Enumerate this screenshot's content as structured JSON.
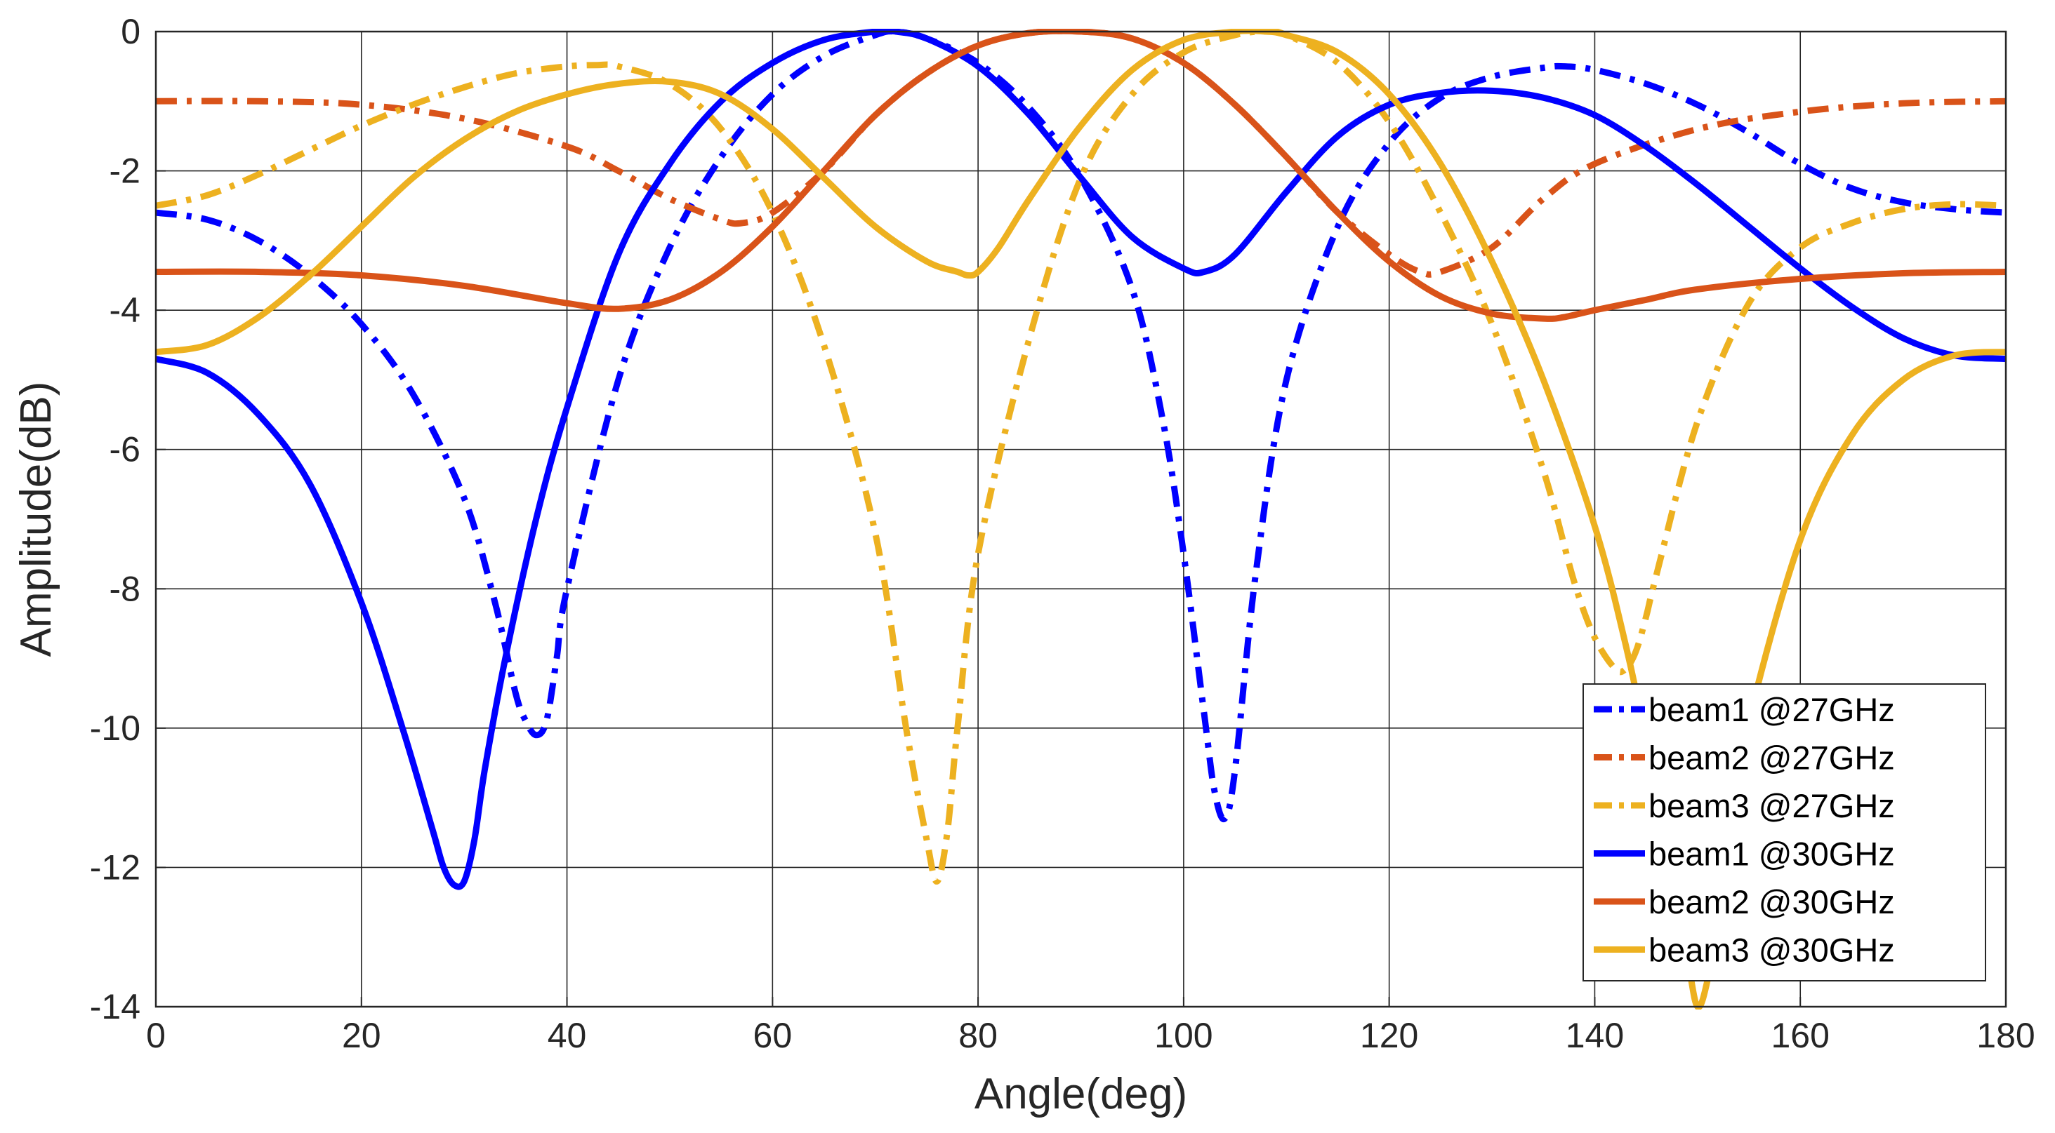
{
  "chart_data": {
    "type": "line",
    "title": "",
    "xlabel": "Angle(deg)",
    "ylabel": "Amplitude(dB)",
    "xlim": [
      0,
      180
    ],
    "ylim": [
      -14,
      0
    ],
    "xticks": [
      0,
      20,
      40,
      60,
      80,
      100,
      120,
      140,
      160,
      180
    ],
    "yticks": [
      0,
      -2,
      -4,
      -6,
      -8,
      -10,
      -12,
      -14
    ],
    "grid": true,
    "legend_position": "bottom-right",
    "series": [
      {
        "name": "beam1 @27GHz",
        "color": "#0000FF",
        "style": "dashdot",
        "x": [
          0,
          5,
          10,
          15,
          20,
          25,
          30,
          33,
          35,
          36,
          37,
          38,
          39,
          40,
          45,
          50,
          55,
          60,
          65,
          70,
          72,
          75,
          80,
          85,
          90,
          95,
          98,
          100,
          102,
          103,
          104,
          105,
          107,
          110,
          115,
          120,
          125,
          130,
          135,
          137,
          140,
          145,
          150,
          155,
          160,
          165,
          170,
          175,
          180
        ],
        "y": [
          -2.6,
          -2.7,
          -3.0,
          -3.5,
          -4.2,
          -5.2,
          -6.7,
          -8.2,
          -9.5,
          -9.9,
          -10.1,
          -9.9,
          -9.0,
          -8.0,
          -5.0,
          -3.1,
          -1.8,
          -0.9,
          -0.35,
          -0.05,
          0.0,
          -0.1,
          -0.45,
          -1.1,
          -2.1,
          -3.7,
          -5.6,
          -7.5,
          -9.8,
          -10.9,
          -11.3,
          -10.6,
          -7.8,
          -5.0,
          -2.8,
          -1.6,
          -0.95,
          -0.65,
          -0.52,
          -0.5,
          -0.55,
          -0.75,
          -1.05,
          -1.45,
          -1.9,
          -2.25,
          -2.45,
          -2.55,
          -2.6
        ]
      },
      {
        "name": "beam2 @27GHz",
        "color": "#D95319",
        "style": "dashdot",
        "x": [
          0,
          10,
          20,
          30,
          40,
          45,
          50,
          55,
          57,
          60,
          65,
          70,
          75,
          80,
          85,
          90,
          95,
          100,
          105,
          110,
          115,
          120,
          123,
          125,
          130,
          135,
          140,
          150,
          160,
          170,
          180
        ],
        "y": [
          -1.0,
          -1.0,
          -1.05,
          -1.25,
          -1.65,
          -2.0,
          -2.4,
          -2.7,
          -2.75,
          -2.6,
          -2.0,
          -1.2,
          -0.6,
          -0.2,
          -0.02,
          0.0,
          -0.1,
          -0.45,
          -1.05,
          -1.8,
          -2.6,
          -3.2,
          -3.45,
          -3.45,
          -3.1,
          -2.4,
          -1.9,
          -1.4,
          -1.15,
          -1.03,
          -1.0
        ]
      },
      {
        "name": "beam3 @27GHz",
        "color": "#EDB120",
        "style": "dashdot",
        "x": [
          0,
          5,
          10,
          15,
          20,
          25,
          30,
          35,
          40,
          43,
          45,
          50,
          55,
          60,
          65,
          70,
          73,
          75,
          76,
          77,
          78,
          80,
          85,
          90,
          95,
          100,
          105,
          108,
          110,
          115,
          120,
          125,
          130,
          135,
          138,
          140,
          142,
          143,
          144,
          145,
          146,
          150,
          155,
          160,
          165,
          170,
          175,
          180
        ],
        "y": [
          -2.5,
          -2.35,
          -2.05,
          -1.7,
          -1.35,
          -1.05,
          -0.8,
          -0.6,
          -0.5,
          -0.48,
          -0.5,
          -0.75,
          -1.4,
          -2.6,
          -4.5,
          -7.2,
          -10.0,
          -11.6,
          -12.2,
          -11.5,
          -10.0,
          -7.5,
          -4.4,
          -2.1,
          -0.9,
          -0.3,
          -0.05,
          0.0,
          -0.05,
          -0.45,
          -1.3,
          -2.6,
          -4.2,
          -6.3,
          -7.9,
          -8.7,
          -9.15,
          -9.15,
          -8.9,
          -8.4,
          -7.8,
          -5.6,
          -3.9,
          -3.1,
          -2.75,
          -2.55,
          -2.48,
          -2.5
        ]
      },
      {
        "name": "beam1 @30GHz",
        "color": "#0000FF",
        "style": "solid",
        "x": [
          0,
          5,
          10,
          15,
          20,
          24,
          27,
          28,
          29,
          30,
          31,
          32,
          34,
          37,
          40,
          45,
          50,
          55,
          60,
          65,
          70,
          72,
          75,
          80,
          85,
          90,
          95,
          100,
          102,
          105,
          110,
          115,
          120,
          125,
          130,
          135,
          140,
          145,
          150,
          155,
          160,
          165,
          170,
          175,
          180
        ],
        "y": [
          -4.7,
          -4.9,
          -5.5,
          -6.5,
          -8.2,
          -10.0,
          -11.5,
          -12.0,
          -12.25,
          -12.2,
          -11.6,
          -10.6,
          -9.0,
          -7.0,
          -5.4,
          -3.2,
          -1.9,
          -1.0,
          -0.45,
          -0.12,
          0.0,
          0.0,
          -0.1,
          -0.5,
          -1.2,
          -2.1,
          -2.95,
          -3.4,
          -3.45,
          -3.2,
          -2.3,
          -1.5,
          -1.05,
          -0.88,
          -0.85,
          -0.95,
          -1.2,
          -1.65,
          -2.2,
          -2.8,
          -3.4,
          -3.95,
          -4.4,
          -4.65,
          -4.7
        ]
      },
      {
        "name": "beam2 @30GHz",
        "color": "#D95319",
        "style": "solid",
        "x": [
          0,
          10,
          20,
          30,
          40,
          45,
          50,
          55,
          60,
          65,
          70,
          75,
          80,
          85,
          90,
          95,
          100,
          105,
          110,
          115,
          120,
          125,
          130,
          135,
          137,
          140,
          145,
          150,
          160,
          170,
          180
        ],
        "y": [
          -3.45,
          -3.45,
          -3.5,
          -3.65,
          -3.9,
          -3.98,
          -3.85,
          -3.45,
          -2.8,
          -2.0,
          -1.2,
          -0.6,
          -0.2,
          -0.02,
          0.0,
          -0.1,
          -0.45,
          -1.05,
          -1.8,
          -2.6,
          -3.3,
          -3.8,
          -4.05,
          -4.12,
          -4.1,
          -4.0,
          -3.85,
          -3.7,
          -3.55,
          -3.47,
          -3.45
        ]
      },
      {
        "name": "beam3 @30GHz",
        "color": "#EDB120",
        "style": "solid",
        "x": [
          0,
          5,
          10,
          15,
          20,
          25,
          30,
          35,
          40,
          45,
          50,
          55,
          60,
          65,
          70,
          75,
          78,
          79,
          80,
          82,
          85,
          90,
          95,
          100,
          105,
          108,
          110,
          115,
          120,
          125,
          130,
          135,
          140,
          143,
          145,
          147,
          149,
          150,
          151,
          152,
          153,
          155,
          160,
          165,
          170,
          175,
          180
        ],
        "y": [
          -4.6,
          -4.5,
          -4.1,
          -3.5,
          -2.8,
          -2.1,
          -1.55,
          -1.15,
          -0.9,
          -0.75,
          -0.72,
          -0.9,
          -1.4,
          -2.1,
          -2.8,
          -3.3,
          -3.45,
          -3.5,
          -3.45,
          -3.1,
          -2.4,
          -1.35,
          -0.55,
          -0.12,
          0.0,
          0.0,
          -0.05,
          -0.3,
          -0.9,
          -1.9,
          -3.3,
          -5.0,
          -7.1,
          -8.8,
          -10.2,
          -11.8,
          -13.3,
          -14.0,
          -13.6,
          -12.7,
          -11.6,
          -9.9,
          -7.3,
          -5.8,
          -5.0,
          -4.65,
          -4.6
        ]
      }
    ]
  }
}
